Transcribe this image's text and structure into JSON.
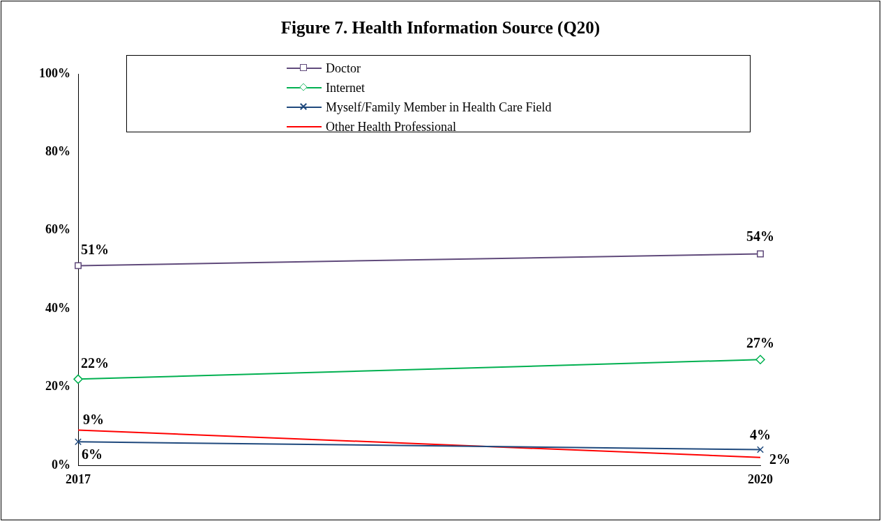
{
  "chart_data": {
    "type": "line",
    "title": "Figure 7. Health Information Source (Q20)",
    "categories": [
      "2017",
      "2020"
    ],
    "series": [
      {
        "name": "Doctor",
        "color": "#604a7b",
        "marker": "square",
        "values": [
          51,
          54
        ],
        "value_labels": [
          "51%",
          "54%"
        ]
      },
      {
        "name": "Internet",
        "color": "#00b050",
        "marker": "diamond",
        "values": [
          22,
          27
        ],
        "value_labels": [
          "22%",
          "27%"
        ]
      },
      {
        "name": "Myself/Family Member in Health Care Field",
        "color": "#1f497d",
        "marker": "cross",
        "values": [
          6,
          4
        ],
        "value_labels": [
          "6%",
          "4%"
        ]
      },
      {
        "name": "Other Health Professional",
        "color": "#ff0000",
        "marker": "none",
        "values": [
          9,
          2
        ],
        "value_labels": [
          "9%",
          "2%"
        ]
      }
    ],
    "ylim": [
      0,
      100
    ],
    "yticks": [
      {
        "value": 0,
        "label": "0%"
      },
      {
        "value": 20,
        "label": "20%"
      },
      {
        "value": 40,
        "label": "40%"
      },
      {
        "value": 60,
        "label": "60%"
      },
      {
        "value": 80,
        "label": "80%"
      },
      {
        "value": 100,
        "label": "100%"
      }
    ],
    "grid": false,
    "legend": "top",
    "line_style": "solid"
  }
}
